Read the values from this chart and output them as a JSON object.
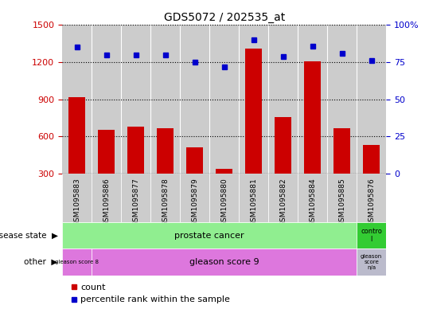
{
  "title": "GDS5072 / 202535_at",
  "samples": [
    "GSM1095883",
    "GSM1095886",
    "GSM1095877",
    "GSM1095878",
    "GSM1095879",
    "GSM1095880",
    "GSM1095881",
    "GSM1095882",
    "GSM1095884",
    "GSM1095885",
    "GSM1095876"
  ],
  "counts": [
    920,
    655,
    680,
    670,
    510,
    340,
    1310,
    760,
    1210,
    670,
    530
  ],
  "percentile_ranks": [
    85,
    80,
    80,
    80,
    75,
    72,
    90,
    79,
    86,
    81,
    76
  ],
  "ylim_left": [
    300,
    1500
  ],
  "ylim_right": [
    0,
    100
  ],
  "yticks_left": [
    300,
    600,
    900,
    1200,
    1500
  ],
  "yticks_right": [
    0,
    25,
    50,
    75,
    100
  ],
  "bar_color": "#cc0000",
  "dot_color": "#0000cc",
  "bar_width": 0.55,
  "tick_area_color": "#cccccc",
  "green_color": "#90ee90",
  "green_control_color": "#33cc33",
  "magenta_color": "#dd77dd",
  "magenta_na_color": "#bbbbcc"
}
